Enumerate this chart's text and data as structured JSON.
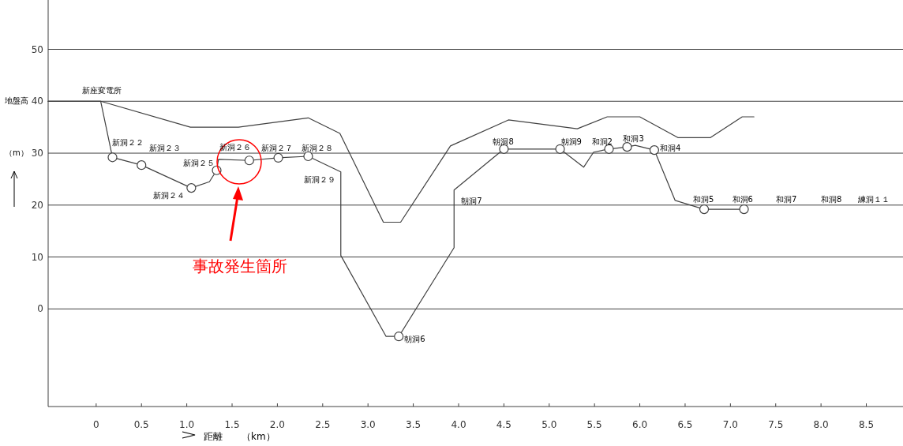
{
  "chart_data": {
    "type": "line",
    "xlabel": "距離　　（km）",
    "ylabel": "地盤高",
    "xlim": [
      -0.53,
      8.87
    ],
    "ylim": [
      -18.8,
      59.2
    ],
    "xticks": [
      0,
      {
        "value": 0.5,
        "label": "0.5"
      },
      {
        "value": 1,
        "label": "1.0"
      },
      {
        "value": 1.5,
        "label": "1.5"
      },
      {
        "value": 2,
        "label": "2.0"
      },
      {
        "value": 2.5,
        "label": "2.5"
      },
      {
        "value": 3,
        "label": "3.0"
      },
      {
        "value": 3.5,
        "label": "3.5"
      },
      {
        "value": 4,
        "label": "4.0"
      },
      {
        "value": 4.5,
        "label": "4.5"
      },
      {
        "value": 5,
        "label": "5.0"
      },
      {
        "value": 5.5,
        "label": "5.5"
      },
      {
        "value": 6,
        "label": "6.0"
      },
      {
        "value": 6.5,
        "label": "6.5"
      },
      {
        "value": 7,
        "label": "7.0"
      },
      {
        "value": 7.5,
        "label": "7.5"
      },
      {
        "value": 8,
        "label": "8.0"
      },
      {
        "value": 8.5,
        "label": "8.5"
      }
    ],
    "yticks": [
      0,
      10,
      20,
      30,
      40,
      50
    ],
    "grid": "y",
    "series": [
      {
        "marker": "none",
        "color": "#404040",
        "x": [
          -0.53,
          0.05,
          1.04,
          1.57,
          2.34,
          2.69,
          3.17,
          3.36,
          3.91,
          4.55,
          5.31,
          5.64,
          6.0,
          6.42,
          6.78,
          7.13,
          7.26
        ],
        "values": [
          40,
          40,
          35.0,
          35.0,
          36.8,
          33.8,
          16.7,
          16.7,
          31.4,
          36.4,
          34.7,
          37.0,
          37.0,
          33.0,
          33.0,
          37.0,
          37.0
        ]
      },
      {
        "marker": "none",
        "color": "#404040",
        "x": [
          -0.53,
          0.05,
          0.18,
          0.5,
          1.05,
          1.25,
          1.33,
          1.35,
          1.69,
          2.01,
          2.34,
          2.7,
          2.7,
          3.2,
          3.34,
          3.95,
          3.95,
          4.5,
          5.12,
          5.38,
          5.49,
          5.66,
          5.86,
          5.95,
          6.16,
          6.39,
          6.71,
          7.15
        ],
        "values": [
          40,
          40,
          29.2,
          27.7,
          23.3,
          24.5,
          26.7,
          28.8,
          28.6,
          29.1,
          29.4,
          26.4,
          10.3,
          -5.3,
          -5.3,
          11.8,
          22.9,
          30.8,
          30.8,
          27.3,
          30.2,
          30.8,
          31.2,
          31.5,
          30.6,
          20.9,
          19.2,
          19.2
        ]
      },
      {
        "type": "scatter",
        "marker": "circle",
        "color": "#404040",
        "x": [
          0.18,
          0.5,
          1.05,
          1.33,
          1.69,
          2.01,
          2.34,
          3.34,
          4.5,
          5.12,
          5.66,
          5.86,
          6.16,
          6.71,
          7.15
        ],
        "values": [
          29.2,
          27.7,
          23.3,
          26.7,
          28.6,
          29.1,
          29.4,
          -5.3,
          30.8,
          30.8,
          30.8,
          31.2,
          30.6,
          19.2,
          19.2
        ]
      }
    ],
    "annotations": [
      "事故発生箇所",
      "（m）",
      {
        "text": "新座変電所",
        "x": 0.05,
        "y": 40
      },
      {
        "text": "新洞２２",
        "x": 0.18,
        "y": 29.2
      },
      {
        "text": "新洞２３",
        "x": 0.5,
        "y": 27.7
      },
      {
        "text": "新洞２４",
        "x": 1.05,
        "y": 23.3
      },
      {
        "text": "新洞２５",
        "x": 1.33,
        "y": 26.7
      },
      {
        "text": "新洞２６",
        "x": 1.69,
        "y": 28.6
      },
      {
        "text": "新洞２７",
        "x": 2.01,
        "y": 29.1
      },
      {
        "text": "新洞２８",
        "x": 2.34,
        "y": 29.4
      },
      {
        "text": "新洞２９",
        "x": 2.7,
        "y": 26.4
      },
      {
        "text": "朝洞6",
        "x": 3.34,
        "y": -5.3
      },
      {
        "text": "朝洞7",
        "x": 3.95,
        "y": 22.9
      },
      {
        "text": "朝洞8",
        "x": 4.5,
        "y": 30.8
      },
      {
        "text": "朝洞9",
        "x": 5.12,
        "y": 30.8
      },
      {
        "text": "和洞2",
        "x": 5.66,
        "y": 30.8
      },
      {
        "text": "和洞3",
        "x": 5.86,
        "y": 31.2
      },
      {
        "text": "和洞4",
        "x": 6.16,
        "y": 30.6
      },
      {
        "text": "和洞5",
        "x": 6.71,
        "y": 19.2
      },
      {
        "text": "和洞6",
        "x": 7.15,
        "y": 19.2
      },
      "和洞7",
      "和洞8",
      "練洞１１"
    ]
  }
}
